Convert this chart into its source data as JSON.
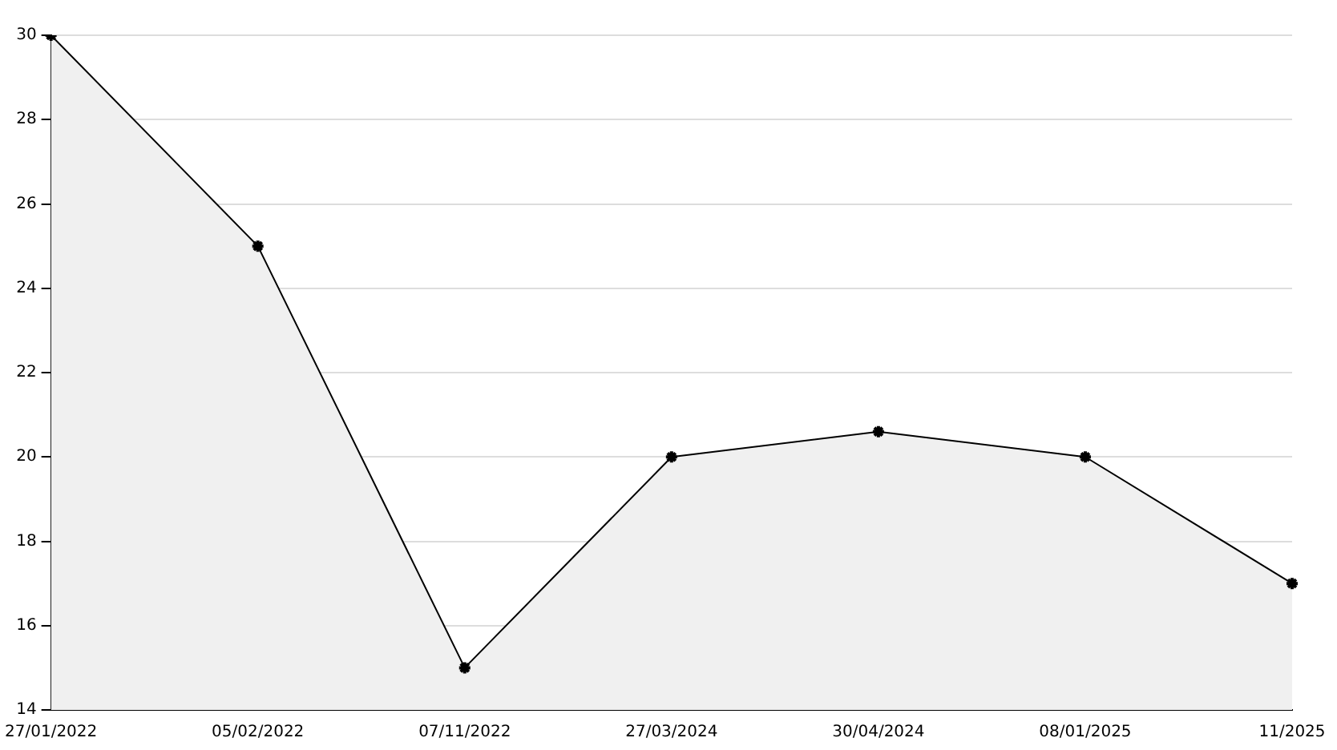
{
  "chart_data": {
    "type": "area",
    "categories": [
      "27/01/2022",
      "05/02/2022",
      "07/11/2022",
      "27/03/2024",
      "30/04/2024",
      "08/01/2025",
      "11/2025"
    ],
    "series": [
      {
        "color": "#000000",
        "values": [
          30,
          25,
          15,
          20,
          20.6,
          20,
          17
        ]
      }
    ],
    "ylim": [
      14,
      30
    ],
    "yticks": [
      14,
      16,
      18,
      20,
      22,
      24,
      26,
      28,
      30
    ],
    "grid": "y",
    "legend": false,
    "marker": "cross",
    "line_style": "solid"
  }
}
